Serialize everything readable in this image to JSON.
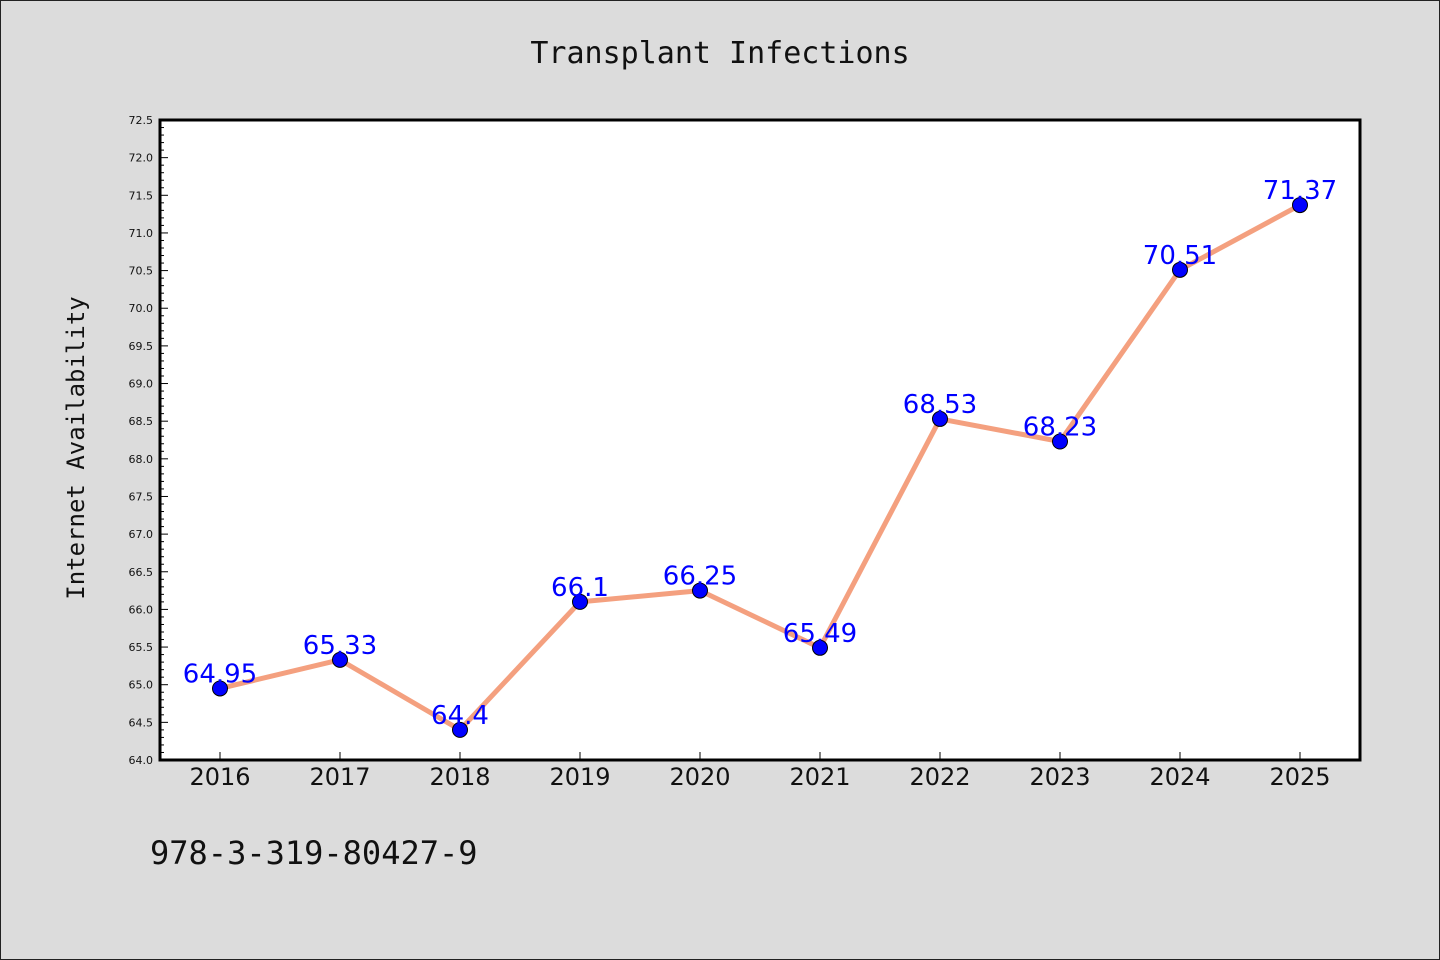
{
  "chart_data": {
    "type": "line",
    "title": "Transplant Infections",
    "xlabel": "",
    "ylabel": "Internet Availability",
    "categories": [
      "2016",
      "2017",
      "2018",
      "2019",
      "2020",
      "2021",
      "2022",
      "2023",
      "2024",
      "2025"
    ],
    "series": [
      {
        "values": [
          64.95,
          65.33,
          64.4,
          66.1,
          66.25,
          65.49,
          68.53,
          68.23,
          70.51,
          71.37
        ],
        "data_labels": [
          "64.95",
          "65.33",
          "64.4",
          "66.1",
          "66.25",
          "65.49",
          "68.53",
          "68.23",
          "70.51",
          "71.37"
        ]
      }
    ],
    "ylim": [
      64.0,
      72.5
    ],
    "yticks": [
      "64.0",
      "64.5",
      "65.0",
      "65.5",
      "66.0",
      "66.5",
      "67.0",
      "67.5",
      "68.0",
      "68.5",
      "69.0",
      "69.5",
      "70.0",
      "70.5",
      "71.0",
      "71.5",
      "72.0",
      "72.5"
    ],
    "grid": false,
    "legend": "none",
    "colors": {
      "line": "#f4a07f",
      "marker": "#0000ff",
      "label": "#0000ff",
      "background": "#dcdcdc",
      "plot_background": "#ffffff"
    }
  },
  "annotation": {
    "isbn": "978-3-319-80427-9"
  }
}
